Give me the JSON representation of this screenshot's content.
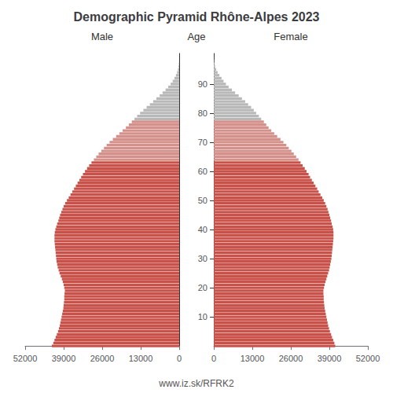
{
  "chart_data": {
    "type": "bar",
    "orientation": "horizontal",
    "title": "Demographic Pyramid Rhône-Alpes 2023",
    "ylabel": "Age",
    "annotations": [
      "www.iz.sk/RFRK2"
    ],
    "grid": false,
    "y": [
      0,
      1,
      2,
      3,
      4,
      5,
      6,
      7,
      8,
      9,
      10,
      11,
      12,
      13,
      14,
      15,
      16,
      17,
      18,
      19,
      20,
      21,
      22,
      23,
      24,
      25,
      26,
      27,
      28,
      29,
      30,
      31,
      32,
      33,
      34,
      35,
      36,
      37,
      38,
      39,
      40,
      41,
      42,
      43,
      44,
      45,
      46,
      47,
      48,
      49,
      50,
      51,
      52,
      53,
      54,
      55,
      56,
      57,
      58,
      59,
      60,
      61,
      62,
      63,
      64,
      65,
      66,
      67,
      68,
      69,
      70,
      71,
      72,
      73,
      74,
      75,
      76,
      77,
      78,
      79,
      80,
      81,
      82,
      83,
      84,
      85,
      86,
      87,
      88,
      89,
      90,
      91,
      92,
      93,
      94,
      95,
      96,
      97,
      98,
      99,
      100
    ],
    "xlim": [
      0,
      52000
    ],
    "xticks": [
      0,
      13000,
      26000,
      39000,
      52000
    ],
    "ylim": [
      -0.5,
      100.5
    ],
    "yticks": [
      10,
      20,
      30,
      40,
      50,
      60,
      70,
      80,
      90
    ],
    "series": [
      {
        "name": "Male",
        "values": [
          43000,
          42500,
          42100,
          41700,
          41300,
          40900,
          40600,
          40300,
          40100,
          39900,
          39700,
          39500,
          39300,
          39100,
          39000,
          38900,
          38800,
          38800,
          38700,
          38600,
          38800,
          39000,
          39300,
          39600,
          40000,
          40400,
          40700,
          41000,
          41200,
          41400,
          41500,
          41600,
          41700,
          41800,
          41900,
          42000,
          42100,
          42100,
          42100,
          42000,
          41800,
          41500,
          41200,
          40800,
          40500,
          40200,
          39800,
          39400,
          39000,
          38500,
          37900,
          37300,
          36700,
          36100,
          35500,
          34900,
          34300,
          33700,
          33100,
          32500,
          31800,
          31100,
          30400,
          29600,
          28800,
          28000,
          27200,
          26300,
          25400,
          24500,
          23500,
          22400,
          21300,
          20200,
          19100,
          18000,
          17000,
          16000,
          15100,
          14200,
          13200,
          12100,
          11000,
          9900,
          8800,
          7700,
          6600,
          5600,
          4600,
          3700,
          2900,
          2200,
          1600,
          1100,
          700,
          420,
          230,
          110,
          45,
          15,
          4
        ],
        "colors": [
          "#c8524a",
          "#c8524a",
          "#c8524a",
          "#c8524a",
          "#c8524a",
          "#c8524a",
          "#c8524a",
          "#c8524a",
          "#c8524a",
          "#c8524a",
          "#c8524a",
          "#c8524a",
          "#c8524a",
          "#c8524a",
          "#c8524a",
          "#c8524a",
          "#c8524a",
          "#c8524a",
          "#c8524a",
          "#c8524a",
          "#c8524a",
          "#c8524a",
          "#c8524a",
          "#c8524a",
          "#c8524a",
          "#c8524a",
          "#c8524a",
          "#c8524a",
          "#c8524a",
          "#c8524a",
          "#c8524a",
          "#c8524a",
          "#c8524a",
          "#c8524a",
          "#c8524a",
          "#c8524a",
          "#c8524a",
          "#c8524a",
          "#c8524a",
          "#c8524a",
          "#c8524a",
          "#c8524a",
          "#c8524a",
          "#c8524a",
          "#c8524a",
          "#c8524a",
          "#c8524a",
          "#c8524a",
          "#c8524a",
          "#c8524a",
          "#c8524a",
          "#c8524a",
          "#c8524a",
          "#c8524a",
          "#c8524a",
          "#c8524a",
          "#c8524a",
          "#c8524a",
          "#c8524a",
          "#c8524a",
          "#c8524a",
          "#c8524a",
          "#c8524a",
          "#c8524a",
          "#d4908a",
          "#d4908a",
          "#d4908a",
          "#d4908a",
          "#d4908a",
          "#d4908a",
          "#d4908a",
          "#d4908a",
          "#d4908a",
          "#d4908a",
          "#d4908a",
          "#d4908a",
          "#d4908a",
          "#d4908a",
          "#b8b8b8",
          "#b8b8b8",
          "#b8b8b8",
          "#b8b8b8",
          "#b8b8b8",
          "#b8b8b8",
          "#b8b8b8",
          "#b8b8b8",
          "#b8b8b8",
          "#b8b8b8",
          "#b8b8b8",
          "#b8b8b8",
          "#b8b8b8",
          "#b8b8b8",
          "#b8b8b8",
          "#b8b8b8",
          "#b8b8b8",
          "#b8b8b8",
          "#b8b8b8",
          "#b8b8b8",
          "#b8b8b8",
          "#b8b8b8",
          "#b8b8b8"
        ]
      },
      {
        "name": "Female",
        "values": [
          41000,
          40700,
          40300,
          39900,
          39600,
          39200,
          38900,
          38600,
          38400,
          38200,
          38000,
          37800,
          37600,
          37400,
          37300,
          37200,
          37100,
          37100,
          37000,
          37000,
          37200,
          37400,
          37700,
          38000,
          38300,
          38600,
          38900,
          39100,
          39300,
          39500,
          39700,
          39800,
          39900,
          40000,
          40100,
          40200,
          40300,
          40400,
          40400,
          40400,
          40300,
          40100,
          39800,
          39600,
          39300,
          39000,
          38700,
          38400,
          38000,
          37600,
          37100,
          36600,
          36000,
          35400,
          34900,
          34300,
          33700,
          33100,
          32500,
          32000,
          31300,
          30700,
          30000,
          29300,
          28600,
          27800,
          27000,
          26200,
          25300,
          24500,
          23500,
          22500,
          21400,
          20400,
          19400,
          18500,
          17700,
          16900,
          16000,
          15200,
          14300,
          13500,
          12600,
          11600,
          10600,
          9500,
          8400,
          7200,
          6100,
          5000,
          4100,
          3300,
          2600,
          1900,
          1300,
          800,
          460,
          220,
          95,
          32,
          9
        ],
        "colors": [
          "#c8524a",
          "#c8524a",
          "#c8524a",
          "#c8524a",
          "#c8524a",
          "#c8524a",
          "#c8524a",
          "#c8524a",
          "#c8524a",
          "#c8524a",
          "#c8524a",
          "#c8524a",
          "#c8524a",
          "#c8524a",
          "#c8524a",
          "#c8524a",
          "#c8524a",
          "#c8524a",
          "#c8524a",
          "#c8524a",
          "#c8524a",
          "#c8524a",
          "#c8524a",
          "#c8524a",
          "#c8524a",
          "#c8524a",
          "#c8524a",
          "#c8524a",
          "#c8524a",
          "#c8524a",
          "#c8524a",
          "#c8524a",
          "#c8524a",
          "#c8524a",
          "#c8524a",
          "#c8524a",
          "#c8524a",
          "#c8524a",
          "#c8524a",
          "#c8524a",
          "#c8524a",
          "#c8524a",
          "#c8524a",
          "#c8524a",
          "#c8524a",
          "#c8524a",
          "#c8524a",
          "#c8524a",
          "#c8524a",
          "#c8524a",
          "#c8524a",
          "#c8524a",
          "#c8524a",
          "#c8524a",
          "#c8524a",
          "#c8524a",
          "#c8524a",
          "#c8524a",
          "#c8524a",
          "#c8524a",
          "#c8524a",
          "#c8524a",
          "#c8524a",
          "#c8524a",
          "#d4908a",
          "#d4908a",
          "#d4908a",
          "#d4908a",
          "#d4908a",
          "#d4908a",
          "#d4908a",
          "#d4908a",
          "#d4908a",
          "#d4908a",
          "#d4908a",
          "#d4908a",
          "#d4908a",
          "#d4908a",
          "#b8b8b8",
          "#b8b8b8",
          "#b8b8b8",
          "#b8b8b8",
          "#b8b8b8",
          "#b8b8b8",
          "#b8b8b8",
          "#b8b8b8",
          "#b8b8b8",
          "#b8b8b8",
          "#b8b8b8",
          "#b8b8b8",
          "#b8b8b8",
          "#b8b8b8",
          "#b8b8b8",
          "#b8b8b8",
          "#b8b8b8",
          "#b8b8b8",
          "#b8b8b8",
          "#b8b8b8",
          "#b8b8b8",
          "#b8b8b8",
          "#b8b8b8"
        ]
      }
    ]
  }
}
